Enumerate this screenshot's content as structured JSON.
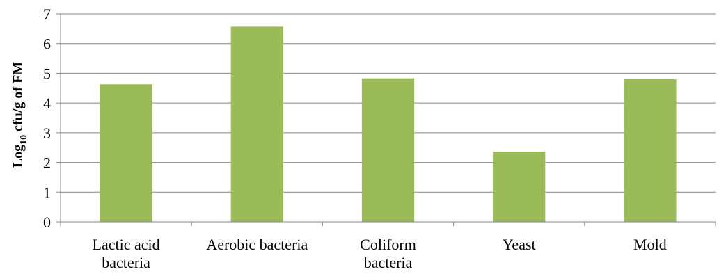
{
  "chart_data": {
    "type": "bar",
    "categories": [
      [
        "Lactic acid",
        "bacteria"
      ],
      [
        "Aerobic bacteria"
      ],
      [
        "Coliform",
        "bacteria"
      ],
      [
        "Yeast"
      ],
      [
        "Mold"
      ]
    ],
    "values": [
      4.63,
      6.57,
      4.83,
      2.36,
      4.8
    ],
    "title": "",
    "xlabel": "",
    "ylabel": {
      "prefix": "Log",
      "subscript": "10",
      "suffix": " cfu/g of FM"
    },
    "ylim": [
      0,
      7
    ],
    "yticks": [
      "0",
      "1",
      "2",
      "3",
      "4",
      "5",
      "6",
      "7"
    ],
    "grid": true,
    "legend": "none",
    "colors": {
      "bar": "#9BBB59",
      "grid": "#868686",
      "axis": "#868686",
      "text": "#000000"
    }
  }
}
